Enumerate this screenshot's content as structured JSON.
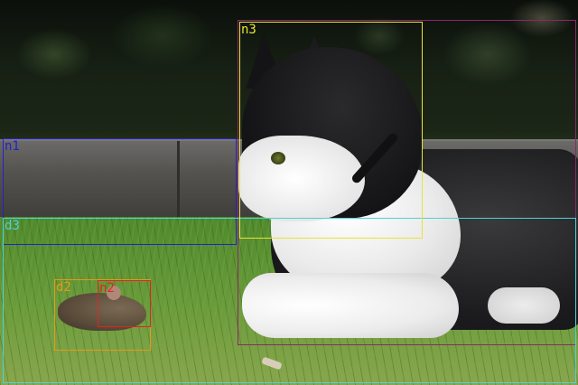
{
  "image": {
    "subject_description_hidden": true
  },
  "annotations": [
    {
      "id": "n1",
      "label": "n1",
      "color": "#2222cc"
    },
    {
      "id": "d3",
      "label": "d3",
      "color": "#4fd0d8"
    },
    {
      "id": "n3",
      "label": "n3",
      "color": "#e8e23a"
    },
    {
      "id": "cat",
      "label": "",
      "color": "#8a2a6a"
    },
    {
      "id": "d2",
      "label": "d2",
      "color": "#e59a1a"
    },
    {
      "id": "n2",
      "label": "n2",
      "color": "#e02424"
    }
  ]
}
